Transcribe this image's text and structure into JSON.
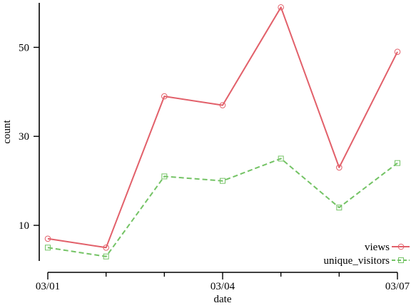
{
  "chart_data": {
    "type": "line",
    "x": [
      "03/01",
      "03/02",
      "03/03",
      "03/04",
      "03/05",
      "03/06",
      "03/07"
    ],
    "x_tick_labels": [
      "03/01",
      "03/04",
      "03/07"
    ],
    "xlabel": "date",
    "ylabel": "count",
    "ylim": [
      2,
      60
    ],
    "y_ticks": [
      10,
      30,
      50
    ],
    "grid": false,
    "legend_position": "bottom-right",
    "series": [
      {
        "name": "views",
        "values": [
          7,
          5,
          39,
          37,
          59,
          23,
          49
        ],
        "color": "#e2606a",
        "line_style": "solid",
        "marker": "circle"
      },
      {
        "name": "unique_visitors",
        "values": [
          5,
          3,
          21,
          20,
          25,
          14,
          24
        ],
        "color": "#74c365",
        "line_style": "dashed",
        "marker": "square"
      }
    ]
  }
}
